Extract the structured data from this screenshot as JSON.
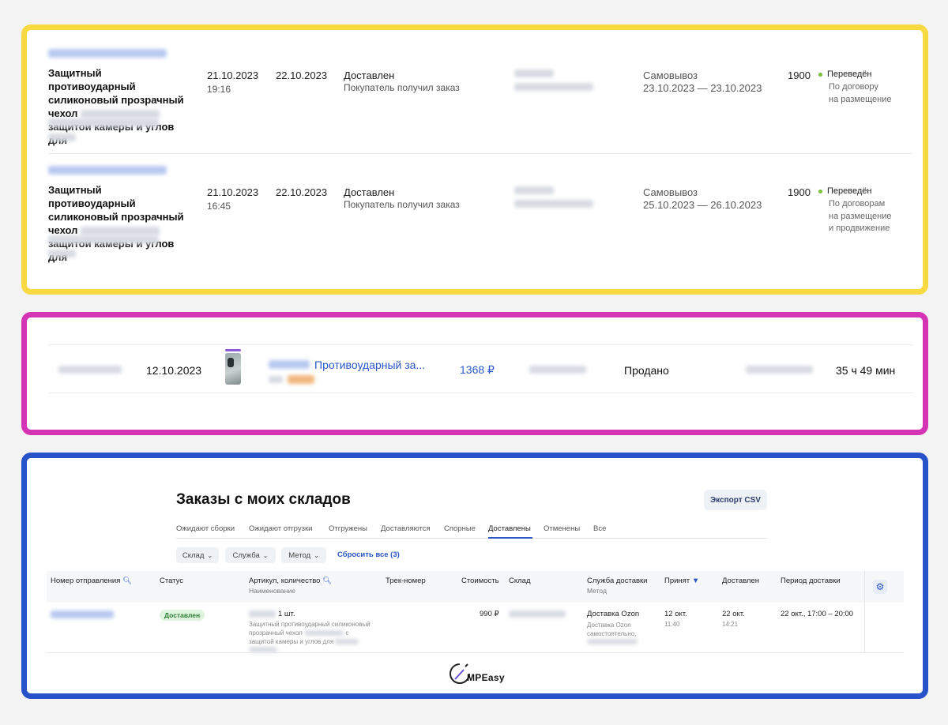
{
  "yellow_orders": [
    {
      "title_line1": "Защитный противоударный",
      "title_line2": "силиконовый прозрачный",
      "title_line3": "чехол",
      "title_line4": "защитой камеры и углов для",
      "created_date": "21.10.2023",
      "created_time": "19:16",
      "ship_date": "22.10.2023",
      "status": "Доставлен",
      "status_note": "Покупатель получил заказ",
      "delivery_method": "Самовывоз",
      "delivery_period": "23.10.2023 — 23.10.2023",
      "price": "1900",
      "payout_status": "Переведён",
      "payout_note_lines": [
        "По договору",
        "на размещение"
      ]
    },
    {
      "title_line1": "Защитный противоударный",
      "title_line2": "силиконовый прозрачный",
      "title_line3": "чехол",
      "title_line4": "защитой камеры и углов для",
      "created_date": "21.10.2023",
      "created_time": "16:45",
      "ship_date": "22.10.2023",
      "status": "Доставлен",
      "status_note": "Покупатель получил заказ",
      "delivery_method": "Самовывоз",
      "delivery_period": "25.10.2023 — 26.10.2023",
      "price": "1900",
      "payout_status": "Переведён",
      "payout_note_lines": [
        "По договорам",
        "на размещение",
        "и продвижение"
      ]
    }
  ],
  "magenta_order": {
    "date": "12.10.2023",
    "product_name": "Противоударный за...",
    "price": "1368 ₽",
    "status": "Продано",
    "duration": "35 ч 49 мин"
  },
  "warehouse": {
    "title": "Заказы с моих складов",
    "export_button": "Экспорт CSV",
    "tabs": [
      "Ожидают сборки",
      "Ожидают отгрузки",
      "Отгружены",
      "Доставляются",
      "Спорные",
      "Доставлены",
      "Отменены",
      "Все"
    ],
    "active_tab": "Доставлены",
    "filters": [
      "Склад",
      "Служба",
      "Метод"
    ],
    "reset_filters": "Сбросить все (3)",
    "columns": {
      "shipment_number": "Номер отправления",
      "status": "Статус",
      "article_qty": "Артикул, количество",
      "article_sub": "Наименование",
      "track": "Трек-номер",
      "cost": "Стоимость",
      "warehouse": "Склад",
      "delivery_service": "Служба доставки",
      "delivery_service_sub": "Метод",
      "accepted": "Принят",
      "delivered": "Доставлен",
      "delivery_period": "Период доставки"
    },
    "row": {
      "status": "Доставлен",
      "qty": "1 шт.",
      "name_line1": "Защитный противоударный силиконовый",
      "name_line2a": "прозрачный чехол",
      "name_line2b": "с",
      "name_line3": "защитой камеры и углов для",
      "cost": "990 ₽",
      "service": "Доставка Ozon",
      "method_line1": "Доставка Ozon",
      "method_line2": "самостоятельно,",
      "accepted_date": "12 окт.",
      "accepted_time": "11:40",
      "delivered_date": "22 окт.",
      "delivered_time": "14:21",
      "period": "22 окт., 17:00 – 20:00"
    }
  },
  "watermark": {
    "text": "MPEasy"
  },
  "colors": {
    "yellow_frame": "#f9d941",
    "magenta_frame": "#d535b4",
    "blue_frame": "#2752c9",
    "link_blue": "#2a56c6",
    "status_green": "#7bbf3a"
  }
}
